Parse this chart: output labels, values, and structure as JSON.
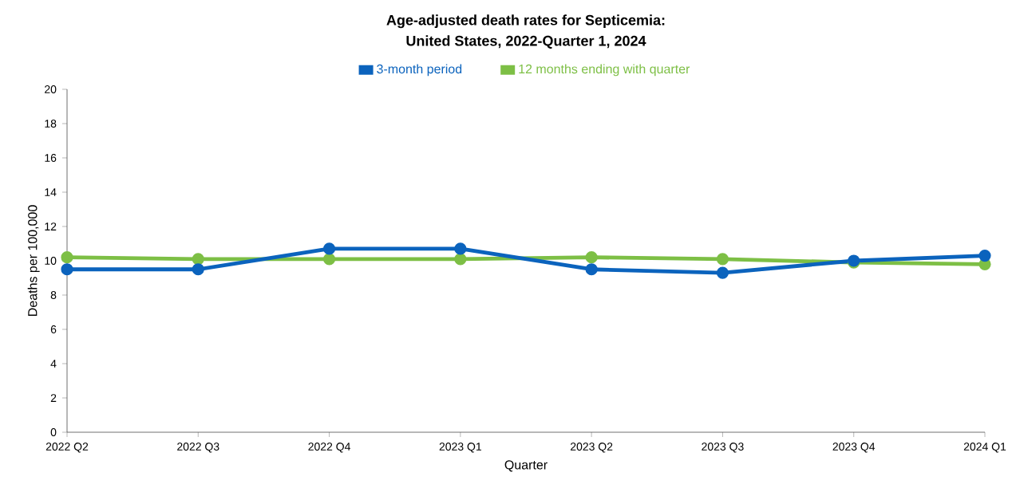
{
  "chart_data": {
    "type": "line",
    "title": "Age-adjusted death rates for Septicemia:",
    "subtitle": "United States, 2022-Quarter 1, 2024",
    "xlabel": "Quarter",
    "ylabel": "Deaths per 100,000",
    "categories": [
      "2022 Q2",
      "2022 Q3",
      "2022 Q4",
      "2023 Q1",
      "2023 Q2",
      "2023 Q3",
      "2023 Q4",
      "2024 Q1"
    ],
    "series": [
      {
        "name": "3-month period",
        "color": "#0b63bd",
        "values": [
          9.5,
          9.5,
          10.7,
          10.7,
          9.5,
          9.3,
          10.0,
          10.3
        ]
      },
      {
        "name": "12 months ending with quarter",
        "color": "#7dbf45",
        "values": [
          10.2,
          10.1,
          10.1,
          10.1,
          10.2,
          10.1,
          9.9,
          9.8
        ]
      }
    ],
    "ylim": [
      0,
      20
    ],
    "yticks": [
      0,
      2,
      4,
      6,
      8,
      10,
      12,
      14,
      16,
      18,
      20
    ],
    "grid": false,
    "legend": "top",
    "marker": "circle",
    "line_style": "solid"
  }
}
